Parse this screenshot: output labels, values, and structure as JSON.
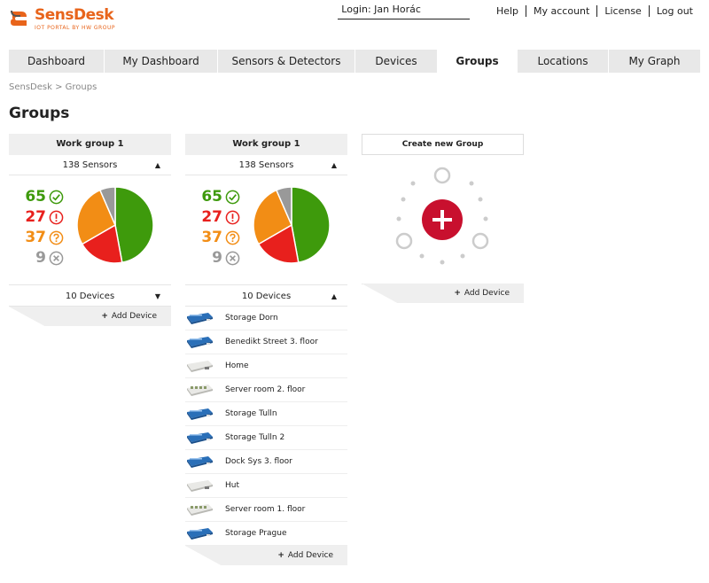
{
  "brand": {
    "name": "SensDesk",
    "tagline": "IOT PORTAL BY HW GROUP",
    "color": "#e8641b"
  },
  "topbar": {
    "login": "Login: Jan Horác",
    "links": [
      "Help",
      "My account",
      "License",
      "Log out"
    ]
  },
  "nav": {
    "tabs": [
      {
        "label": "Dashboard"
      },
      {
        "label": "My Dashboard"
      },
      {
        "label": "Sensors & Detectors"
      },
      {
        "label": "Devices"
      },
      {
        "label": "Groups"
      },
      {
        "label": "Locations"
      },
      {
        "label": "My Graph"
      }
    ],
    "active": "Groups"
  },
  "breadcrumb": "SensDesk > Groups",
  "page_title": "Groups",
  "colors": {
    "ok": "#3e9a0c",
    "alarm": "#e8201d",
    "warning": "#f28d15",
    "disconnected": "#999999",
    "add": "#c8102e"
  },
  "groups": [
    {
      "name": "Work group 1",
      "sensors_label": "138 Sensors",
      "stats": {
        "ok": 65,
        "alarm": 27,
        "warning": 37,
        "disconnected": 9
      },
      "devices_label": "10 Devices",
      "devices_expanded": false,
      "add_device": "Add Device"
    },
    {
      "name": "Work group 1",
      "sensors_label": "138 Sensors",
      "stats": {
        "ok": 65,
        "alarm": 27,
        "warning": 37,
        "disconnected": 9
      },
      "devices_label": "10 Devices",
      "devices_expanded": true,
      "devices": [
        {
          "name": "Storage Dorn",
          "icon": "blue-device-icon"
        },
        {
          "name": "Benedikt Street 3. floor",
          "icon": "blue-device-icon"
        },
        {
          "name": "Home",
          "icon": "white-device-icon"
        },
        {
          "name": "Server room 2. floor",
          "icon": "grey-device-icon"
        },
        {
          "name": "Storage Tulln",
          "icon": "blue-device-icon"
        },
        {
          "name": "Storage Tulln 2",
          "icon": "blue-device-icon"
        },
        {
          "name": "Dock Sys 3. floor",
          "icon": "blue-device-icon"
        },
        {
          "name": "Hut",
          "icon": "white-device-icon"
        },
        {
          "name": "Server room 1. floor",
          "icon": "grey-device-icon"
        },
        {
          "name": "Storage Prague",
          "icon": "blue-device-icon"
        }
      ],
      "add_device": "Add Device"
    }
  ],
  "new_group": {
    "label": "Create new Group",
    "add_device": "Add Device"
  }
}
